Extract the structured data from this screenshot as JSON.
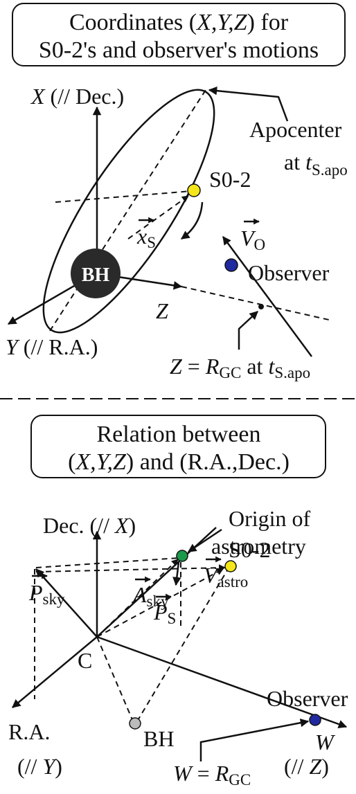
{
  "top": {
    "title": [
      "Coordinates (",
      "X,Y,Z",
      ") for",
      "S0-2's and observer's motions"
    ],
    "x_axis": [
      "X",
      " (// Dec.)"
    ],
    "y_axis": [
      "Y",
      " (// R.A.)"
    ],
    "z_axis": "Z",
    "bh": "BH",
    "apocenter": [
      "Apocenter",
      "at ",
      "t",
      "S.apo"
    ],
    "s02": "S0-2",
    "x_s": [
      "x",
      "S"
    ],
    "v_o": [
      "V",
      "O"
    ],
    "observer": "Observer",
    "z_label": [
      "Z",
      " = ",
      "R",
      "GC",
      " at ",
      "t",
      "S.apo"
    ]
  },
  "bottom": {
    "title": [
      "Relation between",
      "(",
      "X,Y,Z",
      ") and (R.A.,Dec.)"
    ],
    "dec_axis": [
      "Dec. (// ",
      "X",
      ")"
    ],
    "ra_axis": [
      "R.A.",
      "(// ",
      "Y",
      ")"
    ],
    "w_axis": [
      "W",
      "(// ",
      "Z",
      ")"
    ],
    "origin": [
      "Origin of",
      "astrometry"
    ],
    "v_astro": [
      "V",
      "astro"
    ],
    "p_sky": [
      "P",
      "sky"
    ],
    "a_sky": [
      "A",
      "sky"
    ],
    "s02": "S0-2",
    "p_s": [
      "P",
      "S"
    ],
    "c": "C",
    "observer": "Observer",
    "bh": "BH",
    "w_label": [
      "W",
      " = ",
      "R",
      "GC"
    ]
  }
}
